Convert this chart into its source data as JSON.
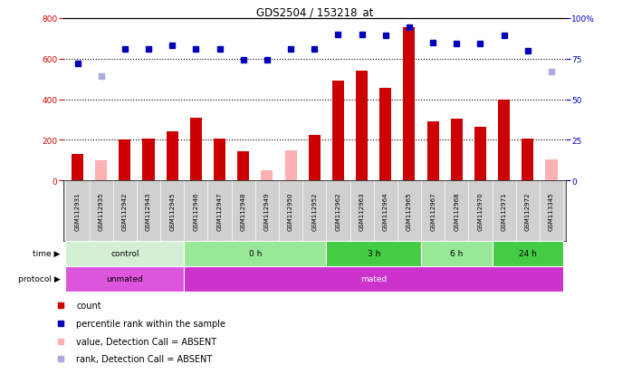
{
  "title": "GDS2504 / 153218_at",
  "samples": [
    "GSM112931",
    "GSM112935",
    "GSM112942",
    "GSM112943",
    "GSM112945",
    "GSM112946",
    "GSM112947",
    "GSM112948",
    "GSM112949",
    "GSM112950",
    "GSM112952",
    "GSM112962",
    "GSM112963",
    "GSM112964",
    "GSM112965",
    "GSM112967",
    "GSM112968",
    "GSM112970",
    "GSM112971",
    "GSM112972",
    "GSM113345"
  ],
  "counts": [
    130,
    0,
    200,
    205,
    240,
    310,
    205,
    145,
    0,
    0,
    225,
    490,
    540,
    455,
    755,
    290,
    305,
    265,
    400,
    205,
    0
  ],
  "counts_absent": [
    0,
    100,
    0,
    0,
    0,
    0,
    0,
    0,
    50,
    150,
    0,
    0,
    0,
    0,
    0,
    0,
    0,
    0,
    0,
    0,
    105
  ],
  "ranks_pct": [
    72,
    0,
    81,
    81,
    83,
    81,
    81,
    74,
    74,
    81,
    81,
    90,
    90,
    89,
    94,
    85,
    84,
    84,
    89,
    80,
    0
  ],
  "ranks_absent_pct": [
    0,
    64,
    0,
    0,
    0,
    0,
    0,
    0,
    0,
    0,
    0,
    0,
    0,
    0,
    0,
    0,
    0,
    0,
    0,
    0,
    67
  ],
  "absent_count": [
    false,
    true,
    false,
    false,
    false,
    false,
    false,
    false,
    true,
    true,
    false,
    false,
    false,
    false,
    false,
    false,
    false,
    false,
    false,
    false,
    true
  ],
  "absent_rank": [
    false,
    true,
    false,
    false,
    false,
    false,
    false,
    false,
    false,
    false,
    false,
    false,
    false,
    false,
    false,
    false,
    false,
    false,
    false,
    false,
    true
  ],
  "time_groups": [
    {
      "label": "control",
      "start": 0,
      "end": 5,
      "color": "#d4f0d4"
    },
    {
      "label": "0 h",
      "start": 5,
      "end": 11,
      "color": "#98e898"
    },
    {
      "label": "3 h",
      "start": 11,
      "end": 15,
      "color": "#44cc44"
    },
    {
      "label": "6 h",
      "start": 15,
      "end": 18,
      "color": "#98e898"
    },
    {
      "label": "24 h",
      "start": 18,
      "end": 21,
      "color": "#44cc44"
    }
  ],
  "protocol_groups": [
    {
      "label": "unmated",
      "start": 0,
      "end": 5,
      "color": "#dd55dd"
    },
    {
      "label": "mated",
      "start": 5,
      "end": 21,
      "color": "#cc33cc"
    }
  ],
  "bar_color": "#cc0000",
  "absent_bar_color": "#ffb0b0",
  "dot_color": "#0000bb",
  "absent_dot_color": "#aaaadd",
  "ylim_left": [
    0,
    800
  ],
  "ylim_right": [
    0,
    100
  ],
  "yticks_left": [
    0,
    200,
    400,
    600,
    800
  ],
  "yticks_right": [
    0,
    25,
    50,
    75,
    100
  ],
  "sample_bg": "#d0d0d0",
  "plot_bg": "#ffffff"
}
